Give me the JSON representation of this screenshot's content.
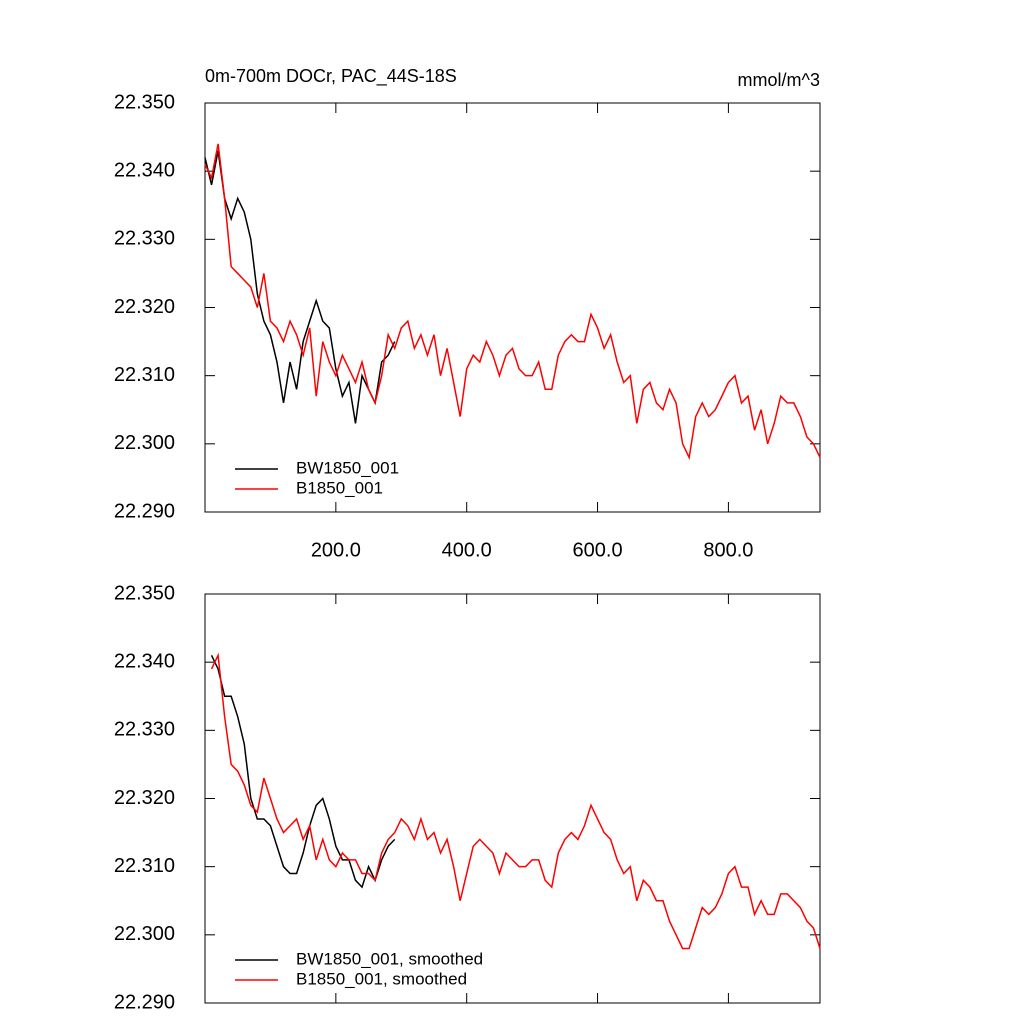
{
  "chart_data": [
    {
      "type": "line",
      "title": "0m-700m DOCr, PAC_44S-18S",
      "units_label": "mmol/m^3",
      "x": [
        0,
        10,
        20,
        30,
        40,
        50,
        60,
        70,
        80,
        90,
        100,
        110,
        120,
        130,
        140,
        150,
        160,
        170,
        180,
        190,
        200,
        210,
        220,
        230,
        240,
        250,
        260,
        270,
        280,
        290,
        300,
        310,
        320,
        330,
        340,
        350,
        360,
        370,
        380,
        390,
        400,
        410,
        420,
        430,
        440,
        450,
        460,
        470,
        480,
        490,
        500,
        510,
        520,
        530,
        540,
        550,
        560,
        570,
        580,
        590,
        600,
        610,
        620,
        630,
        640,
        650,
        660,
        670,
        680,
        690,
        700,
        710,
        720,
        730,
        740,
        750,
        760,
        770,
        780,
        790,
        800,
        810,
        820,
        830,
        840,
        850,
        860,
        870,
        880,
        890,
        900,
        910,
        920,
        930,
        940
      ],
      "series": [
        {
          "name": "BW1850_001",
          "color": "#000000",
          "values": [
            22.342,
            22.338,
            22.343,
            22.336,
            22.333,
            22.336,
            22.334,
            22.33,
            22.322,
            22.318,
            22.316,
            22.312,
            22.306,
            22.312,
            22.308,
            22.315,
            22.318,
            22.321,
            22.318,
            22.317,
            22.311,
            22.307,
            22.309,
            22.303,
            22.31,
            22.308,
            22.306,
            22.312,
            22.313,
            22.315,
            null,
            null,
            null,
            null,
            null,
            null,
            null,
            null,
            null,
            null,
            null,
            null,
            null,
            null,
            null,
            null,
            null,
            null,
            null,
            null,
            null,
            null,
            null,
            null,
            null,
            null,
            null,
            null,
            null,
            null,
            null,
            null,
            null,
            null,
            null,
            null,
            null,
            null,
            null,
            null,
            null,
            null,
            null,
            null,
            null,
            null,
            null,
            null,
            null,
            null,
            null,
            null,
            null,
            null,
            null,
            null,
            null,
            null,
            null,
            null,
            null,
            null,
            null,
            null,
            null
          ]
        },
        {
          "name": "B1850_001",
          "color": "#ff0000",
          "values": [
            22.341,
            22.339,
            22.344,
            22.336,
            22.326,
            22.325,
            22.324,
            22.323,
            22.32,
            22.325,
            22.318,
            22.317,
            22.315,
            22.318,
            22.316,
            22.313,
            22.317,
            22.307,
            22.315,
            22.312,
            22.31,
            22.313,
            22.311,
            22.309,
            22.312,
            22.308,
            22.306,
            22.31,
            22.316,
            22.314,
            22.317,
            22.318,
            22.314,
            22.316,
            22.313,
            22.316,
            22.31,
            22.314,
            22.309,
            22.304,
            22.311,
            22.313,
            22.312,
            22.315,
            22.313,
            22.31,
            22.313,
            22.314,
            22.311,
            22.31,
            22.31,
            22.312,
            22.308,
            22.308,
            22.313,
            22.315,
            22.316,
            22.315,
            22.315,
            22.319,
            22.317,
            22.314,
            22.316,
            22.312,
            22.309,
            22.31,
            22.303,
            22.308,
            22.309,
            22.306,
            22.305,
            22.308,
            22.306,
            22.3,
            22.298,
            22.304,
            22.306,
            22.304,
            22.305,
            22.307,
            22.309,
            22.31,
            22.306,
            22.307,
            22.302,
            22.305,
            22.3,
            22.303,
            22.307,
            22.306,
            22.306,
            22.304,
            22.301,
            22.3,
            22.298
          ]
        }
      ],
      "xlim": [
        0,
        940
      ],
      "ylim": [
        22.29,
        22.35
      ],
      "xticks": [
        {
          "value": 200,
          "label": "200.0"
        },
        {
          "value": 400,
          "label": "400.0"
        },
        {
          "value": 600,
          "label": "600.0"
        },
        {
          "value": 800,
          "label": "800.0"
        }
      ],
      "yticks": [
        {
          "value": 22.29,
          "label": "22.290"
        },
        {
          "value": 22.3,
          "label": "22.300"
        },
        {
          "value": 22.31,
          "label": "22.310"
        },
        {
          "value": 22.32,
          "label": "22.320"
        },
        {
          "value": 22.33,
          "label": "22.330"
        },
        {
          "value": 22.34,
          "label": "22.340"
        },
        {
          "value": 22.35,
          "label": "22.350"
        }
      ]
    },
    {
      "type": "line",
      "x": [
        0,
        10,
        20,
        30,
        40,
        50,
        60,
        70,
        80,
        90,
        100,
        110,
        120,
        130,
        140,
        150,
        160,
        170,
        180,
        190,
        200,
        210,
        220,
        230,
        240,
        250,
        260,
        270,
        280,
        290,
        300,
        310,
        320,
        330,
        340,
        350,
        360,
        370,
        380,
        390,
        400,
        410,
        420,
        430,
        440,
        450,
        460,
        470,
        480,
        490,
        500,
        510,
        520,
        530,
        540,
        550,
        560,
        570,
        580,
        590,
        600,
        610,
        620,
        630,
        640,
        650,
        660,
        670,
        680,
        690,
        700,
        710,
        720,
        730,
        740,
        750,
        760,
        770,
        780,
        790,
        800,
        810,
        820,
        830,
        840,
        850,
        860,
        870,
        880,
        890,
        900,
        910,
        920,
        930,
        940
      ],
      "series": [
        {
          "name": "BW1850_001, smoothed",
          "color": "#000000",
          "values": [
            null,
            22.341,
            22.339,
            22.335,
            22.335,
            22.332,
            22.328,
            22.32,
            22.317,
            22.317,
            22.316,
            22.313,
            22.31,
            22.309,
            22.309,
            22.312,
            22.316,
            22.319,
            22.32,
            22.317,
            22.313,
            22.311,
            22.311,
            22.308,
            22.307,
            22.31,
            22.308,
            22.311,
            22.313,
            22.314,
            null,
            null,
            null,
            null,
            null,
            null,
            null,
            null,
            null,
            null,
            null,
            null,
            null,
            null,
            null,
            null,
            null,
            null,
            null,
            null,
            null,
            null,
            null,
            null,
            null,
            null,
            null,
            null,
            null,
            null,
            null,
            null,
            null,
            null,
            null,
            null,
            null,
            null,
            null,
            null,
            null,
            null,
            null,
            null,
            null,
            null,
            null,
            null,
            null,
            null,
            null,
            null,
            null,
            null,
            null,
            null,
            null,
            null,
            null,
            null,
            null,
            null,
            null,
            null,
            null
          ]
        },
        {
          "name": "B1850_001, smoothed",
          "color": "#ff0000",
          "values": [
            null,
            22.339,
            22.341,
            22.332,
            22.325,
            22.324,
            22.322,
            22.319,
            22.318,
            22.323,
            22.32,
            22.317,
            22.315,
            22.316,
            22.317,
            22.314,
            22.316,
            22.311,
            22.314,
            22.311,
            22.31,
            22.312,
            22.311,
            22.311,
            22.309,
            22.309,
            22.308,
            22.312,
            22.314,
            22.315,
            22.317,
            22.316,
            22.314,
            22.317,
            22.314,
            22.315,
            22.312,
            22.314,
            22.31,
            22.305,
            22.309,
            22.313,
            22.314,
            22.313,
            22.312,
            22.309,
            22.312,
            22.311,
            22.31,
            22.31,
            22.311,
            22.311,
            22.308,
            22.307,
            22.312,
            22.314,
            22.315,
            22.314,
            22.316,
            22.319,
            22.317,
            22.315,
            22.314,
            22.311,
            22.309,
            22.31,
            22.305,
            22.308,
            22.307,
            22.305,
            22.305,
            22.302,
            22.3,
            22.298,
            22.298,
            22.301,
            22.304,
            22.303,
            22.304,
            22.306,
            22.309,
            22.31,
            22.307,
            22.307,
            22.303,
            22.305,
            22.303,
            22.303,
            22.306,
            22.306,
            22.305,
            22.304,
            22.302,
            22.301,
            22.298
          ]
        }
      ],
      "xlim": [
        0,
        940
      ],
      "ylim": [
        22.29,
        22.35
      ],
      "xticks": [
        200,
        400,
        600,
        800
      ],
      "yticks": [
        {
          "value": 22.29,
          "label": "22.290"
        },
        {
          "value": 22.3,
          "label": "22.300"
        },
        {
          "value": 22.31,
          "label": "22.310"
        },
        {
          "value": 22.32,
          "label": "22.320"
        },
        {
          "value": 22.33,
          "label": "22.330"
        },
        {
          "value": 22.34,
          "label": "22.340"
        },
        {
          "value": 22.35,
          "label": "22.350"
        }
      ]
    }
  ]
}
